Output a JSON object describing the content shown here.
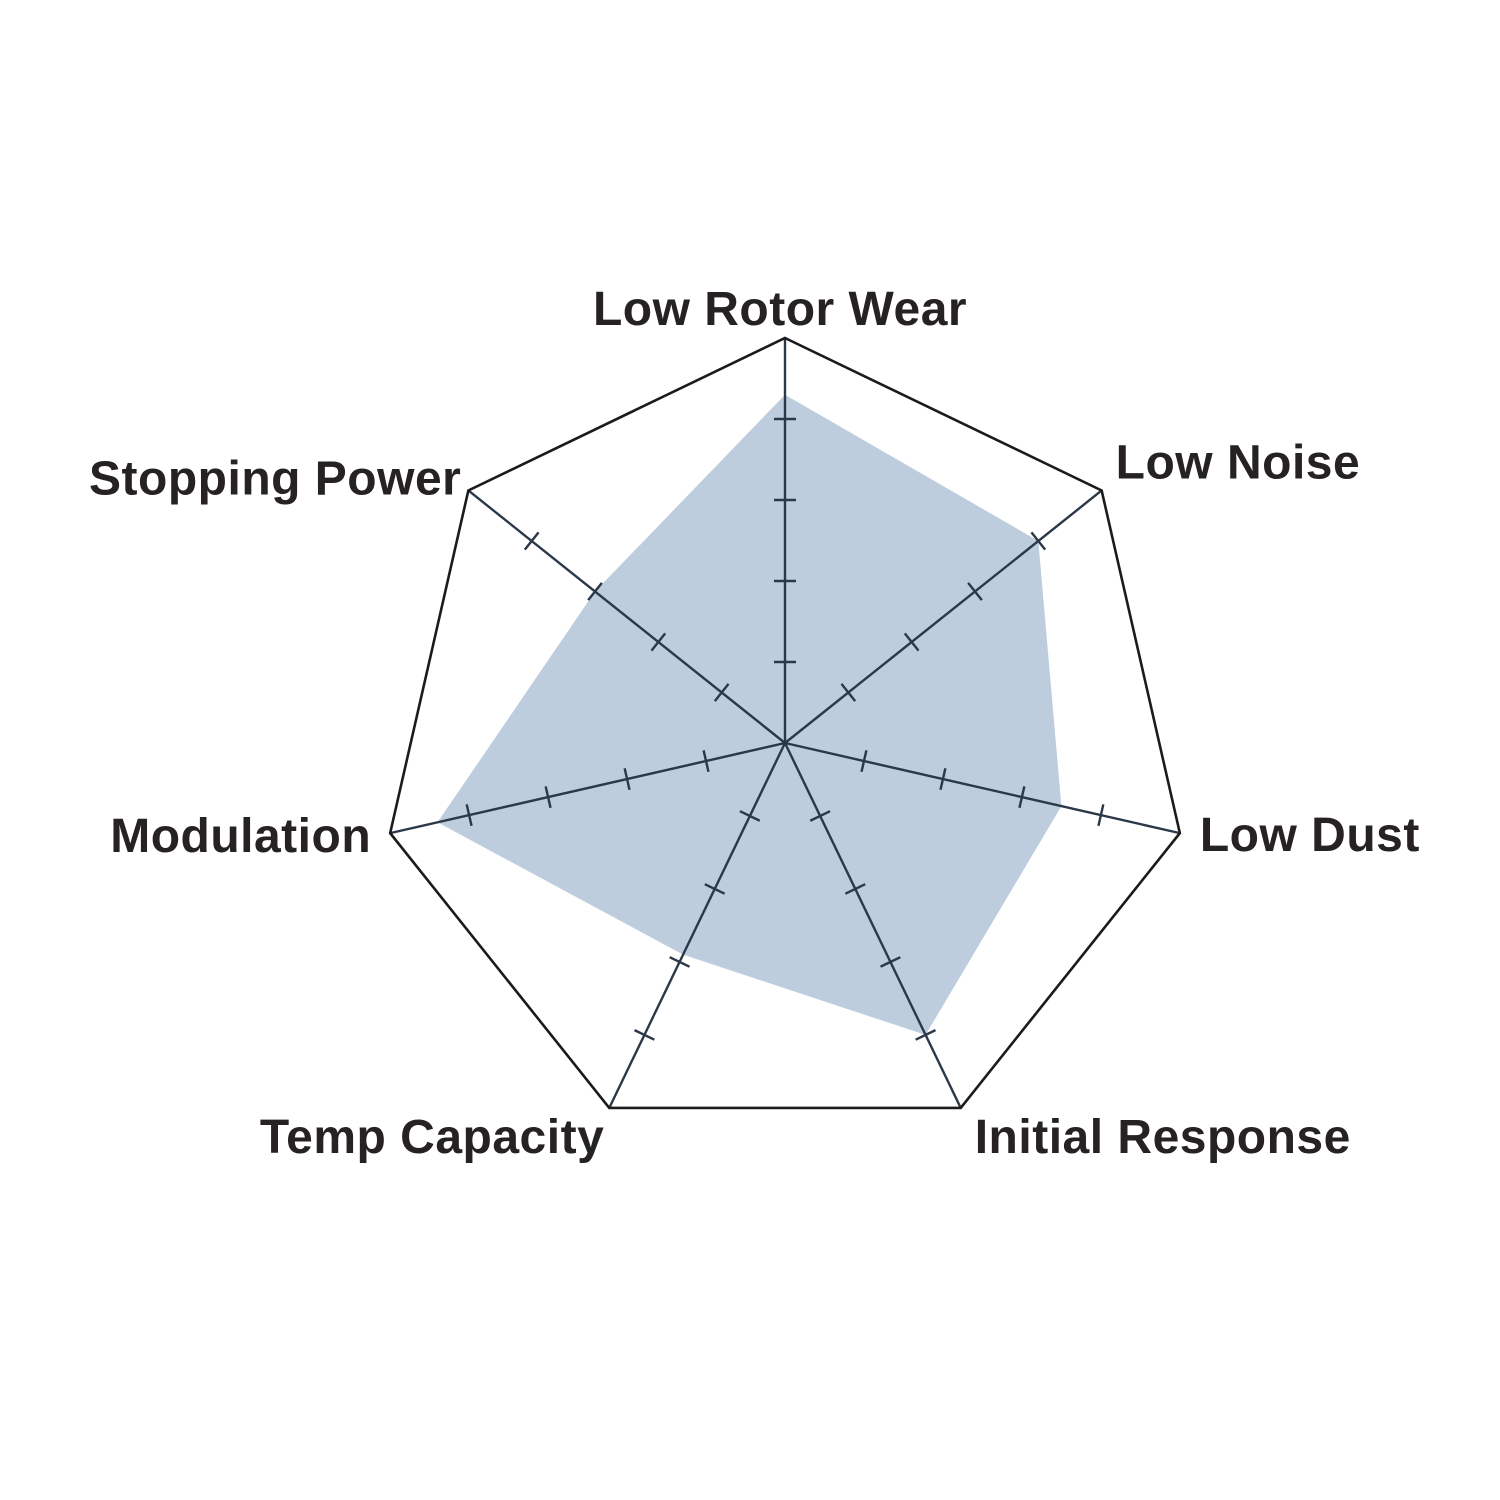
{
  "page": {
    "background_color": "#ffffff",
    "title": ""
  },
  "chart_data": {
    "type": "radar",
    "categories": [
      "Low Rotor Wear",
      "Low Noise",
      "Low Dust",
      "Initial Response",
      "Temp Capacity",
      "Modulation",
      "Stopping Power"
    ],
    "values": [
      4.3,
      4.0,
      3.5,
      4.0,
      2.9,
      4.4,
      3.0
    ],
    "scale_min": 0,
    "scale_max": 5,
    "tick_interval": 1,
    "ticks_per_axis": [
      1,
      2,
      3,
      4
    ],
    "num_axes": 7,
    "start_axis": "top",
    "direction": "clockwise",
    "title": "",
    "legend": "none",
    "grid": "radial spokes with tick marks, single outer heptagon ring, no value labels",
    "colors": {
      "fill": "#bdcdde",
      "spoke": "#2a3847",
      "tick": "#2a3847",
      "outline": "#1b1b1b",
      "label": "#262223"
    }
  }
}
